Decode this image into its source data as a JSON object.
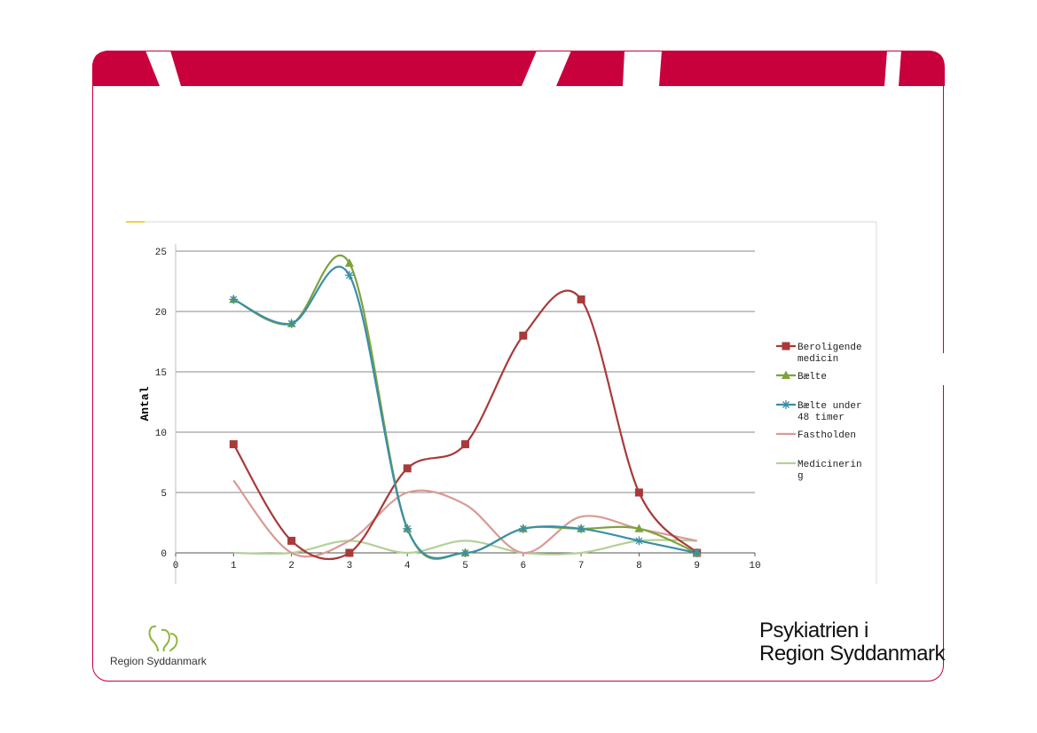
{
  "brand": {
    "logo_text": "Region Syddanmark",
    "title_line1": "Psykiatrien i",
    "title_line2": "Region Syddanmark"
  },
  "colors": {
    "brand_red": "#c8003c",
    "logo_green": "#8db63c"
  },
  "chart_data": {
    "type": "line",
    "title": "",
    "xlabel": "",
    "ylabel": "Antal",
    "xlim": [
      0,
      10
    ],
    "ylim": [
      0,
      25
    ],
    "x_ticks": [
      0,
      1,
      2,
      3,
      4,
      5,
      6,
      7,
      8,
      9,
      10
    ],
    "y_ticks": [
      0,
      5,
      10,
      15,
      20,
      25
    ],
    "grid": "horizontal",
    "smoothed": true,
    "legend_position": "right",
    "series": [
      {
        "name": "Beroligende medicin",
        "legend_lines": [
          "Beroligende",
          "medicin"
        ],
        "color": "#a83a3a",
        "marker": "square",
        "x": [
          1,
          2,
          3,
          4,
          5,
          6,
          7,
          8,
          9
        ],
        "y": [
          9,
          1,
          0,
          7,
          9,
          18,
          21,
          5,
          0
        ]
      },
      {
        "name": "Bælte",
        "legend_lines": [
          "Bælte"
        ],
        "color": "#7ea23c",
        "marker": "triangle",
        "x": [
          1,
          2,
          3,
          4,
          5,
          6,
          7,
          8,
          9
        ],
        "y": [
          21,
          19,
          24,
          2,
          0,
          2,
          2,
          2,
          0
        ]
      },
      {
        "name": "Bælte under 48 timer",
        "legend_lines": [
          "Bælte under",
          "48 timer"
        ],
        "color": "#3a8fa8",
        "marker": "star",
        "x": [
          1,
          2,
          3,
          4,
          5,
          6,
          7,
          8,
          9
        ],
        "y": [
          21,
          19,
          23,
          2,
          0,
          2,
          2,
          1,
          0
        ]
      },
      {
        "name": "Fastholden",
        "legend_lines": [
          "Fastholden"
        ],
        "color": "#d99a95",
        "marker": "none",
        "x": [
          1,
          2,
          3,
          4,
          5,
          6,
          7,
          8,
          9
        ],
        "y": [
          6,
          0,
          1,
          5,
          4,
          0,
          3,
          2,
          1
        ]
      },
      {
        "name": "Medicinering",
        "legend_lines": [
          "Medicinerin",
          "g"
        ],
        "color": "#b3d196",
        "marker": "none",
        "x": [
          1,
          2,
          3,
          4,
          5,
          6,
          7,
          8,
          9
        ],
        "y": [
          0,
          0,
          1,
          0,
          1,
          0,
          0,
          1,
          1
        ]
      }
    ]
  }
}
